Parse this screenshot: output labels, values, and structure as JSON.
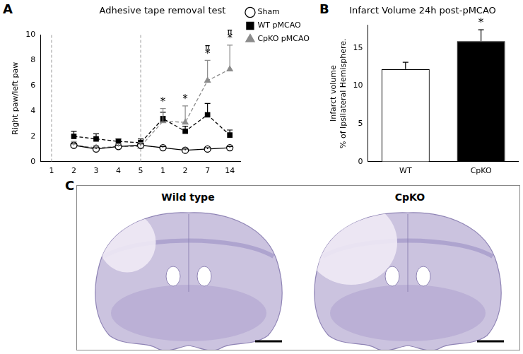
{
  "chart_data": [
    {
      "panel": "A",
      "type": "line",
      "title": "Adhesive tape removal test",
      "ylabel": "Right paw/left paw",
      "categories": [
        "1",
        "2",
        "3",
        "4",
        "5",
        "1",
        "2",
        "7",
        "14"
      ],
      "series": [
        {
          "name": "Sham",
          "color": "#000000",
          "marker": "open circle",
          "line_style": "solid",
          "values": [
            null,
            1.3,
            1.0,
            1.2,
            1.3,
            1.1,
            0.9,
            1.0,
            1.1
          ],
          "errors": [
            null,
            0.1,
            0.1,
            0.1,
            0.1,
            0.1,
            0.1,
            0.1,
            0.1
          ]
        },
        {
          "name": "WT pMCAO",
          "color": "#000000",
          "marker": "square",
          "line_style": "dashed",
          "values": [
            null,
            2.0,
            1.8,
            1.6,
            1.5,
            3.4,
            2.4,
            3.7,
            2.1
          ],
          "errors": [
            null,
            0.4,
            0.4,
            0.2,
            0.3,
            0.5,
            0.4,
            0.9,
            0.4
          ]
        },
        {
          "name": "CpKO pMCAO",
          "color": "#8c8c8c",
          "marker": "triangle",
          "line_style": "dashed",
          "values": [
            null,
            1.3,
            1.1,
            1.2,
            1.2,
            3.2,
            3.1,
            6.4,
            7.3
          ],
          "errors": [
            null,
            0.3,
            0.2,
            0.2,
            0.3,
            1.0,
            1.3,
            1.6,
            1.9
          ]
        }
      ],
      "dividers_at": [
        0,
        4
      ],
      "annotations": [
        {
          "at": 5,
          "text": "*"
        },
        {
          "at": 6,
          "text": "*"
        },
        {
          "at": 7,
          "text": "*"
        },
        {
          "at": 7,
          "text": "π"
        },
        {
          "at": 8,
          "text": "*"
        },
        {
          "at": 8,
          "text": "π"
        }
      ],
      "ylim": [
        0,
        10
      ],
      "yticks": [
        0,
        2,
        4,
        6,
        8,
        10
      ],
      "grid": false,
      "legend": "upper right"
    },
    {
      "panel": "B",
      "type": "bar",
      "title": "Infarct Volume 24h post-pMCAO",
      "ylabel": [
        "Infarct volume",
        "% of Ipsilateral Hemisphere."
      ],
      "categories": [
        "WT",
        "CpKO"
      ],
      "values": [
        12.2,
        15.9
      ],
      "errors": [
        0.9,
        1.5
      ],
      "colors": [
        "#ffffff",
        "#000000"
      ],
      "annotations": [
        {
          "at": 1,
          "text": "*"
        }
      ],
      "ylim": [
        0,
        18
      ],
      "yticks": [
        0,
        5,
        10,
        15
      ],
      "grid": false
    }
  ],
  "images": {
    "panel": "C",
    "labels": [
      "Wild type",
      "CpKO"
    ]
  }
}
